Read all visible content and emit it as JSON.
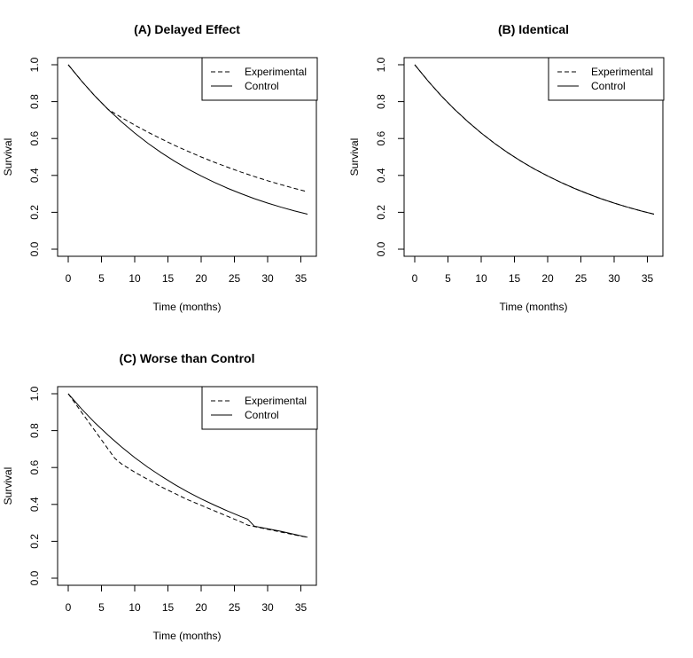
{
  "chart_data": [
    {
      "type": "line",
      "title": "(A) Delayed Effect",
      "xlabel": "Time (months)",
      "ylabel": "Survival",
      "xlim": [
        0,
        36
      ],
      "ylim": [
        0,
        1
      ],
      "xticks": [
        "0",
        "5",
        "10",
        "15",
        "20",
        "25",
        "30",
        "35"
      ],
      "yticks": [
        "0.0",
        "0.2",
        "0.4",
        "0.6",
        "0.8",
        "1.0"
      ],
      "grid": false,
      "legend_position": "top-right",
      "series": [
        {
          "name": "Experimental",
          "style": "dashed",
          "x": [
            0,
            2,
            4,
            6,
            8,
            10,
            12,
            14,
            16,
            18,
            20,
            22,
            24,
            26,
            28,
            30,
            32,
            34,
            36
          ],
          "y": [
            1.0,
            0.912,
            0.831,
            0.758,
            0.714,
            0.673,
            0.634,
            0.598,
            0.563,
            0.531,
            0.5,
            0.471,
            0.444,
            0.418,
            0.394,
            0.371,
            0.35,
            0.33,
            0.311
          ]
        },
        {
          "name": "Control",
          "style": "solid",
          "x": [
            0,
            2,
            4,
            6,
            8,
            10,
            12,
            14,
            16,
            18,
            20,
            22,
            24,
            26,
            28,
            30,
            32,
            34,
            36
          ],
          "y": [
            1.0,
            0.912,
            0.831,
            0.758,
            0.691,
            0.63,
            0.574,
            0.523,
            0.477,
            0.435,
            0.397,
            0.362,
            0.33,
            0.301,
            0.274,
            0.25,
            0.228,
            0.208,
            0.19
          ]
        }
      ]
    },
    {
      "type": "line",
      "title": "(B) Identical",
      "xlabel": "Time (months)",
      "ylabel": "Survival",
      "xlim": [
        0,
        36
      ],
      "ylim": [
        0,
        1
      ],
      "xticks": [
        "0",
        "5",
        "10",
        "15",
        "20",
        "25",
        "30",
        "35"
      ],
      "yticks": [
        "0.0",
        "0.2",
        "0.4",
        "0.6",
        "0.8",
        "1.0"
      ],
      "grid": false,
      "legend_position": "top-right",
      "series": [
        {
          "name": "Experimental",
          "style": "dashed",
          "x": [
            0,
            2,
            4,
            6,
            8,
            10,
            12,
            14,
            16,
            18,
            20,
            22,
            24,
            26,
            28,
            30,
            32,
            34,
            36
          ],
          "y": [
            1.0,
            0.912,
            0.831,
            0.758,
            0.691,
            0.63,
            0.574,
            0.523,
            0.477,
            0.435,
            0.397,
            0.362,
            0.33,
            0.301,
            0.274,
            0.25,
            0.228,
            0.208,
            0.19
          ]
        },
        {
          "name": "Control",
          "style": "solid",
          "x": [
            0,
            2,
            4,
            6,
            8,
            10,
            12,
            14,
            16,
            18,
            20,
            22,
            24,
            26,
            28,
            30,
            32,
            34,
            36
          ],
          "y": [
            1.0,
            0.912,
            0.831,
            0.758,
            0.691,
            0.63,
            0.574,
            0.523,
            0.477,
            0.435,
            0.397,
            0.362,
            0.33,
            0.301,
            0.274,
            0.25,
            0.228,
            0.208,
            0.19
          ]
        }
      ]
    },
    {
      "type": "line",
      "title": "(C) Worse than Control",
      "xlabel": "Time (months)",
      "ylabel": "Survival",
      "xlim": [
        0,
        36
      ],
      "ylim": [
        0,
        1
      ],
      "xticks": [
        "0",
        "5",
        "10",
        "15",
        "20",
        "25",
        "30",
        "35"
      ],
      "yticks": [
        "0.0",
        "0.2",
        "0.4",
        "0.6",
        "0.8",
        "1.0"
      ],
      "grid": false,
      "legend_position": "top-right",
      "series": [
        {
          "name": "Experimental",
          "style": "dashed",
          "x": [
            0,
            1,
            2,
            3,
            4,
            5,
            6,
            7,
            8,
            10,
            12,
            14,
            16,
            18,
            20,
            22,
            24,
            26,
            27,
            28,
            30,
            32,
            34,
            36
          ],
          "y": [
            1.0,
            0.95,
            0.9,
            0.85,
            0.8,
            0.75,
            0.7,
            0.65,
            0.62,
            0.575,
            0.535,
            0.495,
            0.46,
            0.425,
            0.395,
            0.365,
            0.335,
            0.305,
            0.288,
            0.28,
            0.265,
            0.25,
            0.235,
            0.222
          ]
        },
        {
          "name": "Control",
          "style": "solid",
          "x": [
            0,
            2,
            4,
            6,
            8,
            10,
            12,
            14,
            16,
            18,
            20,
            22,
            24,
            26,
            27,
            28,
            30,
            32,
            34,
            36
          ],
          "y": [
            1.0,
            0.918,
            0.843,
            0.775,
            0.712,
            0.654,
            0.601,
            0.553,
            0.508,
            0.467,
            0.43,
            0.396,
            0.364,
            0.334,
            0.32,
            0.282,
            0.268,
            0.254,
            0.238,
            0.222
          ]
        }
      ]
    }
  ]
}
